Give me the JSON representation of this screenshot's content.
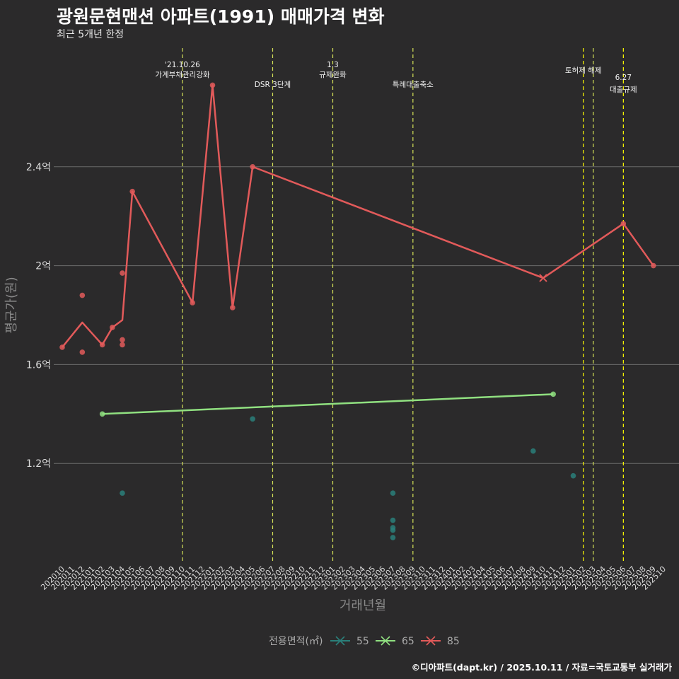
{
  "chart_data": {
    "type": "line",
    "title": "광원문현맨션 아파트(1991) 매매가격 변화",
    "subtitle": "최근 5개년 한정",
    "xlabel": "거래년월",
    "ylabel": "평균가(원)",
    "caption": "©디아파트(dapt.kr) / 2025.10.11 / 자료=국토교통부 실거래가",
    "categories": [
      "202010",
      "202011",
      "202012",
      "202101",
      "202102",
      "202103",
      "202104",
      "202105",
      "202106",
      "202107",
      "202108",
      "202109",
      "202110",
      "202111",
      "202112",
      "202201",
      "202202",
      "202203",
      "202204",
      "202205",
      "202206",
      "202207",
      "202208",
      "202209",
      "202210",
      "202211",
      "202212",
      "202301",
      "202302",
      "202303",
      "202304",
      "202305",
      "202306",
      "202307",
      "202308",
      "202309",
      "202310",
      "202311",
      "202312",
      "202401",
      "202402",
      "202403",
      "202404",
      "202405",
      "202406",
      "202407",
      "202408",
      "202409",
      "202410",
      "202411",
      "202412",
      "202501",
      "202502",
      "202503",
      "202504",
      "202505",
      "202506",
      "202507",
      "202508",
      "202509",
      "202510"
    ],
    "y_ticks": [
      {
        "value": 1.2,
        "label": "1.2억"
      },
      {
        "value": 1.6,
        "label": "1.6억"
      },
      {
        "value": 2.0,
        "label": "2억"
      },
      {
        "value": 2.4,
        "label": "2.4억"
      }
    ],
    "ylim": [
      0.8,
      2.88
    ],
    "legend_title": "전용면적(㎡)",
    "series": [
      {
        "name": "55",
        "color": "#2a7f7a",
        "line": [],
        "points": [
          [
            "202104",
            1.08
          ],
          [
            "202205",
            1.38
          ],
          [
            "202307",
            1.08
          ],
          [
            "202307",
            0.97
          ],
          [
            "202307",
            0.94
          ],
          [
            "202307",
            0.93
          ],
          [
            "202307",
            0.9
          ],
          [
            "202409",
            1.25
          ],
          [
            "202501",
            1.15
          ]
        ]
      },
      {
        "name": "65",
        "color": "#90e080",
        "line": [
          [
            "202102",
            1.4
          ],
          [
            "202411",
            1.48
          ]
        ],
        "points": [
          [
            "202102",
            1.4
          ],
          [
            "202411",
            1.48
          ]
        ]
      },
      {
        "name": "85",
        "color": "#e25a5a",
        "line": [
          [
            "202010",
            1.67
          ],
          [
            "202012",
            1.77
          ],
          [
            "202102",
            1.68
          ],
          [
            "202103",
            1.75
          ],
          [
            "202104",
            1.78
          ],
          [
            "202105",
            2.3
          ],
          [
            "202111",
            1.85
          ],
          [
            "202201",
            2.73
          ],
          [
            "202203",
            1.83
          ],
          [
            "202205",
            2.4
          ],
          [
            "202410",
            1.95
          ],
          [
            "202506",
            2.17
          ],
          [
            "202509",
            2.0
          ]
        ],
        "points": [
          [
            "202010",
            1.67
          ],
          [
            "202012",
            1.88
          ],
          [
            "202012",
            1.65
          ],
          [
            "202102",
            1.68
          ],
          [
            "202103",
            1.75
          ],
          [
            "202104",
            1.97
          ],
          [
            "202104",
            1.7
          ],
          [
            "202104",
            1.68
          ],
          [
            "202105",
            2.3
          ],
          [
            "202111",
            1.85
          ],
          [
            "202201",
            2.73
          ],
          [
            "202203",
            1.83
          ],
          [
            "202205",
            2.4
          ],
          [
            "202506",
            2.17
          ],
          [
            "202509",
            2.0
          ]
        ],
        "cross": [
          [
            "202410",
            1.95
          ]
        ]
      }
    ],
    "events": [
      {
        "month": "202110",
        "color": "#d4e157",
        "lines": [
          "'21.10.26",
          "가계부채관리강화"
        ],
        "row": 0
      },
      {
        "month": "202207",
        "color": "#d4e157",
        "lines": [
          "DSR 3단계"
        ],
        "row": 2
      },
      {
        "month": "202301",
        "color": "#d4e157",
        "lines": [
          "1.3",
          "규제완화"
        ],
        "row": 0
      },
      {
        "month": "202309",
        "color": "#d4e157",
        "lines": [
          "특례대출축소"
        ],
        "row": 2
      },
      {
        "month": "202502",
        "color": "#ffff00",
        "lines": [
          "토허제 해제"
        ],
        "row": 1,
        "anchor": "mid-right"
      },
      {
        "month": "202503",
        "color": "#d4e157",
        "lines": [],
        "row": 1
      },
      {
        "month": "202506",
        "color": "#ffff00",
        "lines": [
          "6.27",
          "대출규제"
        ],
        "row": 3
      }
    ]
  }
}
